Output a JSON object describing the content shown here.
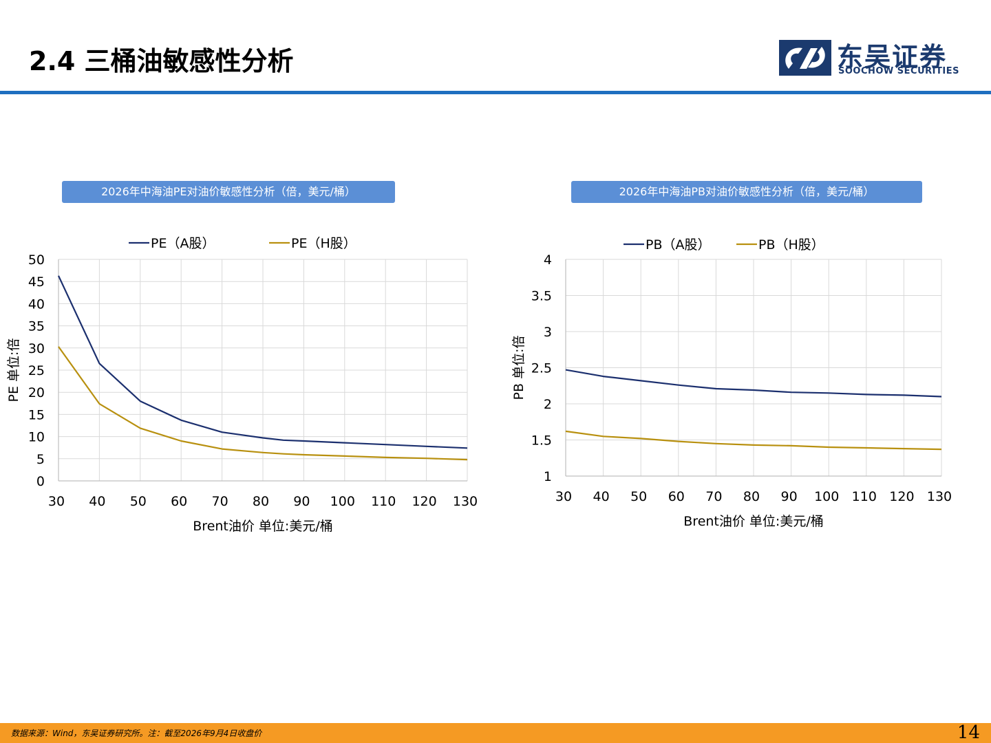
{
  "header": {
    "title": "2.4 三桶油敏感性分析",
    "logo_cn": "东吴证券",
    "logo_en": "SOOCHOW SECURITIES"
  },
  "colors": {
    "header_rule": "#1f6fc0",
    "banner": "#5b8fd6",
    "series_a": "#1b2f6e",
    "series_h": "#b8900f",
    "footer": "#f59a23"
  },
  "chart_data": [
    {
      "type": "line",
      "banner": "2026年中海油PE对油价敏感性分析（倍，美元/桶）",
      "title": "",
      "xlabel": "Brent油价  单位:美元/桶",
      "ylabel": "PE  单位:倍",
      "x": [
        30,
        40,
        50,
        60,
        70,
        80,
        85,
        90,
        100,
        110,
        120,
        130
      ],
      "xticks": [
        30,
        40,
        50,
        60,
        70,
        80,
        90,
        100,
        110,
        120,
        130
      ],
      "yticks": [
        0,
        5,
        10,
        15,
        20,
        25,
        30,
        35,
        40,
        45,
        50
      ],
      "xlim": [
        30,
        130
      ],
      "ylim": [
        0,
        50
      ],
      "grid": true,
      "legend_position": "top",
      "series": [
        {
          "name": "PE（A股）",
          "color": "#1b2f6e",
          "values": [
            46.3,
            26.5,
            18.0,
            13.7,
            11.0,
            9.7,
            9.2,
            9.0,
            8.6,
            8.2,
            7.8,
            7.4
          ]
        },
        {
          "name": "PE（H股）",
          "color": "#b8900f",
          "values": [
            30.3,
            17.4,
            11.9,
            9.0,
            7.2,
            6.4,
            6.1,
            5.9,
            5.6,
            5.3,
            5.1,
            4.8
          ]
        }
      ]
    },
    {
      "type": "line",
      "banner": "2026年中海油PB对油价敏感性分析（倍，美元/桶）",
      "title": "",
      "xlabel": "Brent油价  单位:美元/桶",
      "ylabel": "PB  单位:倍",
      "x": [
        30,
        40,
        50,
        60,
        70,
        80,
        90,
        100,
        110,
        120,
        130
      ],
      "xticks": [
        30,
        40,
        50,
        60,
        70,
        80,
        90,
        100,
        110,
        120,
        130
      ],
      "yticks": [
        1,
        1.5,
        2,
        2.5,
        3,
        3.5,
        4
      ],
      "xlim": [
        30,
        130
      ],
      "ylim": [
        1,
        4
      ],
      "grid": true,
      "legend_position": "top",
      "series": [
        {
          "name": "PB（A股）",
          "color": "#1b2f6e",
          "values": [
            2.47,
            2.38,
            2.32,
            2.26,
            2.21,
            2.19,
            2.16,
            2.15,
            2.13,
            2.12,
            2.1
          ]
        },
        {
          "name": "PB（H股）",
          "color": "#b8900f",
          "values": [
            1.62,
            1.55,
            1.52,
            1.48,
            1.45,
            1.43,
            1.42,
            1.4,
            1.39,
            1.38,
            1.37
          ]
        }
      ]
    }
  ],
  "footer": {
    "note": "数据来源：Wind，东吴证券研究所。注：截至2026年9月4日收盘价",
    "page": "14"
  }
}
